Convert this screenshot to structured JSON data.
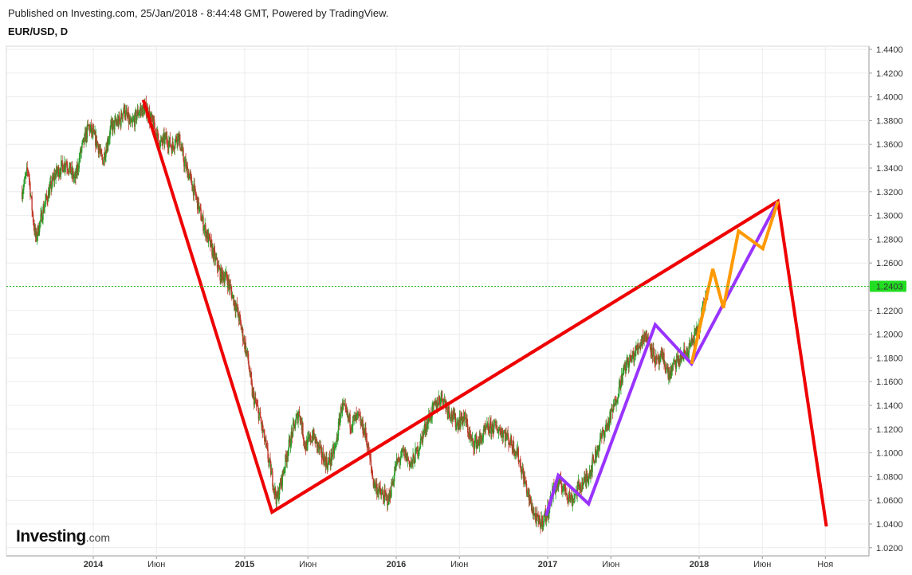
{
  "header": {
    "published": "Published on Investing.com, 25/Jan/2018 - 8:44:48 GMT, Powered by TradingView.",
    "symbol": "EUR/USD, D"
  },
  "logo": {
    "main": "Investing",
    "suffix": ".com"
  },
  "chart_data": {
    "type": "candlestick",
    "symbol": "EUR/USD",
    "timeframe": "D",
    "ylim": [
      1.01,
      1.445
    ],
    "y_ticks": [
      "1.4400",
      "1.4200",
      "1.4000",
      "1.3800",
      "1.3600",
      "1.3400",
      "1.3200",
      "1.3000",
      "1.2800",
      "1.2600",
      "1.2400",
      "1.2200",
      "1.2000",
      "1.1800",
      "1.1600",
      "1.1400",
      "1.1200",
      "1.1000",
      "1.0800",
      "1.0600",
      "1.0400",
      "1.0200"
    ],
    "x_ticks": [
      {
        "label": "2014",
        "t": 2014.0,
        "bold": true
      },
      {
        "label": "Июн",
        "t": 2014.417,
        "bold": false
      },
      {
        "label": "2015",
        "t": 2015.0,
        "bold": true
      },
      {
        "label": "Июн",
        "t": 2015.417,
        "bold": false
      },
      {
        "label": "2016",
        "t": 2016.0,
        "bold": true
      },
      {
        "label": "Июн",
        "t": 2016.417,
        "bold": false
      },
      {
        "label": "2017",
        "t": 2017.0,
        "bold": true
      },
      {
        "label": "Июн",
        "t": 2017.417,
        "bold": false
      },
      {
        "label": "2018",
        "t": 2018.0,
        "bold": true
      },
      {
        "label": "Июн",
        "t": 2018.417,
        "bold": false
      },
      {
        "label": "Ноя",
        "t": 2018.833,
        "bold": false
      }
    ],
    "current_price": {
      "label": "1.2403",
      "value": 1.2403,
      "color": "#22bb22"
    },
    "price_path": [
      [
        2013.53,
        1.32
      ],
      [
        2013.57,
        1.34
      ],
      [
        2013.6,
        1.3
      ],
      [
        2013.62,
        1.28
      ],
      [
        2013.68,
        1.31
      ],
      [
        2013.75,
        1.335
      ],
      [
        2013.82,
        1.345
      ],
      [
        2013.88,
        1.33
      ],
      [
        2013.92,
        1.355
      ],
      [
        2013.97,
        1.375
      ],
      [
        2014.03,
        1.36
      ],
      [
        2014.06,
        1.345
      ],
      [
        2014.12,
        1.375
      ],
      [
        2014.18,
        1.38
      ],
      [
        2014.2,
        1.39
      ],
      [
        2014.25,
        1.375
      ],
      [
        2014.3,
        1.388
      ],
      [
        2014.35,
        1.39
      ],
      [
        2014.4,
        1.375
      ],
      [
        2014.44,
        1.36
      ],
      [
        2014.48,
        1.365
      ],
      [
        2014.52,
        1.358
      ],
      [
        2014.56,
        1.368
      ],
      [
        2014.6,
        1.345
      ],
      [
        2014.63,
        1.335
      ],
      [
        2014.68,
        1.315
      ],
      [
        2014.72,
        1.295
      ],
      [
        2014.76,
        1.28
      ],
      [
        2014.8,
        1.265
      ],
      [
        2014.84,
        1.25
      ],
      [
        2014.88,
        1.248
      ],
      [
        2014.92,
        1.232
      ],
      [
        2014.96,
        1.215
      ],
      [
        2015.02,
        1.18
      ],
      [
        2015.05,
        1.15
      ],
      [
        2015.1,
        1.13
      ],
      [
        2015.14,
        1.105
      ],
      [
        2015.18,
        1.08
      ],
      [
        2015.21,
        1.06
      ],
      [
        2015.24,
        1.075
      ],
      [
        2015.28,
        1.1
      ],
      [
        2015.32,
        1.12
      ],
      [
        2015.36,
        1.135
      ],
      [
        2015.4,
        1.105
      ],
      [
        2015.45,
        1.115
      ],
      [
        2015.5,
        1.1
      ],
      [
        2015.55,
        1.09
      ],
      [
        2015.6,
        1.105
      ],
      [
        2015.64,
        1.14
      ],
      [
        2015.7,
        1.125
      ],
      [
        2015.75,
        1.13
      ],
      [
        2015.8,
        1.115
      ],
      [
        2015.85,
        1.075
      ],
      [
        2015.9,
        1.065
      ],
      [
        2015.95,
        1.06
      ],
      [
        2016.0,
        1.09
      ],
      [
        2016.05,
        1.1
      ],
      [
        2016.1,
        1.09
      ],
      [
        2016.15,
        1.105
      ],
      [
        2016.2,
        1.125
      ],
      [
        2016.25,
        1.138
      ],
      [
        2016.3,
        1.148
      ],
      [
        2016.35,
        1.135
      ],
      [
        2016.4,
        1.125
      ],
      [
        2016.45,
        1.13
      ],
      [
        2016.5,
        1.108
      ],
      [
        2016.55,
        1.11
      ],
      [
        2016.6,
        1.12
      ],
      [
        2016.65,
        1.122
      ],
      [
        2016.7,
        1.118
      ],
      [
        2016.75,
        1.11
      ],
      [
        2016.8,
        1.1
      ],
      [
        2016.85,
        1.075
      ],
      [
        2016.88,
        1.06
      ],
      [
        2016.92,
        1.045
      ],
      [
        2016.95,
        1.04
      ],
      [
        2017.0,
        1.05
      ],
      [
        2017.04,
        1.07
      ],
      [
        2017.08,
        1.075
      ],
      [
        2017.12,
        1.068
      ],
      [
        2017.16,
        1.06
      ],
      [
        2017.2,
        1.07
      ],
      [
        2017.24,
        1.075
      ],
      [
        2017.28,
        1.085
      ],
      [
        2017.32,
        1.1
      ],
      [
        2017.36,
        1.115
      ],
      [
        2017.4,
        1.125
      ],
      [
        2017.44,
        1.14
      ],
      [
        2017.48,
        1.16
      ],
      [
        2017.52,
        1.175
      ],
      [
        2017.56,
        1.18
      ],
      [
        2017.6,
        1.19
      ],
      [
        2017.64,
        1.2
      ],
      [
        2017.68,
        1.19
      ],
      [
        2017.72,
        1.175
      ],
      [
        2017.76,
        1.18
      ],
      [
        2017.8,
        1.165
      ],
      [
        2017.84,
        1.175
      ],
      [
        2017.88,
        1.18
      ],
      [
        2017.92,
        1.185
      ],
      [
        2017.96,
        1.195
      ],
      [
        2018.0,
        1.205
      ],
      [
        2018.03,
        1.225
      ],
      [
        2018.06,
        1.24
      ]
    ],
    "overlays": [
      {
        "name": "",
        "color": "#ee0000",
        "points": [
          [
            2014.33,
            1.3975
          ],
          [
            2015.18,
            1.05
          ],
          [
            2018.52,
            1.312
          ],
          [
            2018.84,
            1.038
          ]
        ]
      },
      {
        "name": "",
        "color": "#ee0000",
        "points": [
          [
            2015.18,
            1.05
          ],
          [
            2018.52,
            1.312
          ]
        ]
      },
      {
        "name": "",
        "color": "#9933ff",
        "points": [
          [
            2016.99,
            1.047
          ],
          [
            2017.07,
            1.081
          ],
          [
            2017.27,
            1.057
          ],
          [
            2017.71,
            1.208
          ],
          [
            2017.95,
            1.175
          ],
          [
            2018.52,
            1.312
          ]
        ]
      },
      {
        "name": "",
        "color": "#ff9900",
        "points": [
          [
            2017.95,
            1.175
          ],
          [
            2018.09,
            1.255
          ],
          [
            2018.16,
            1.222
          ],
          [
            2018.26,
            1.287
          ],
          [
            2018.42,
            1.272
          ],
          [
            2018.52,
            1.312
          ]
        ]
      }
    ]
  }
}
